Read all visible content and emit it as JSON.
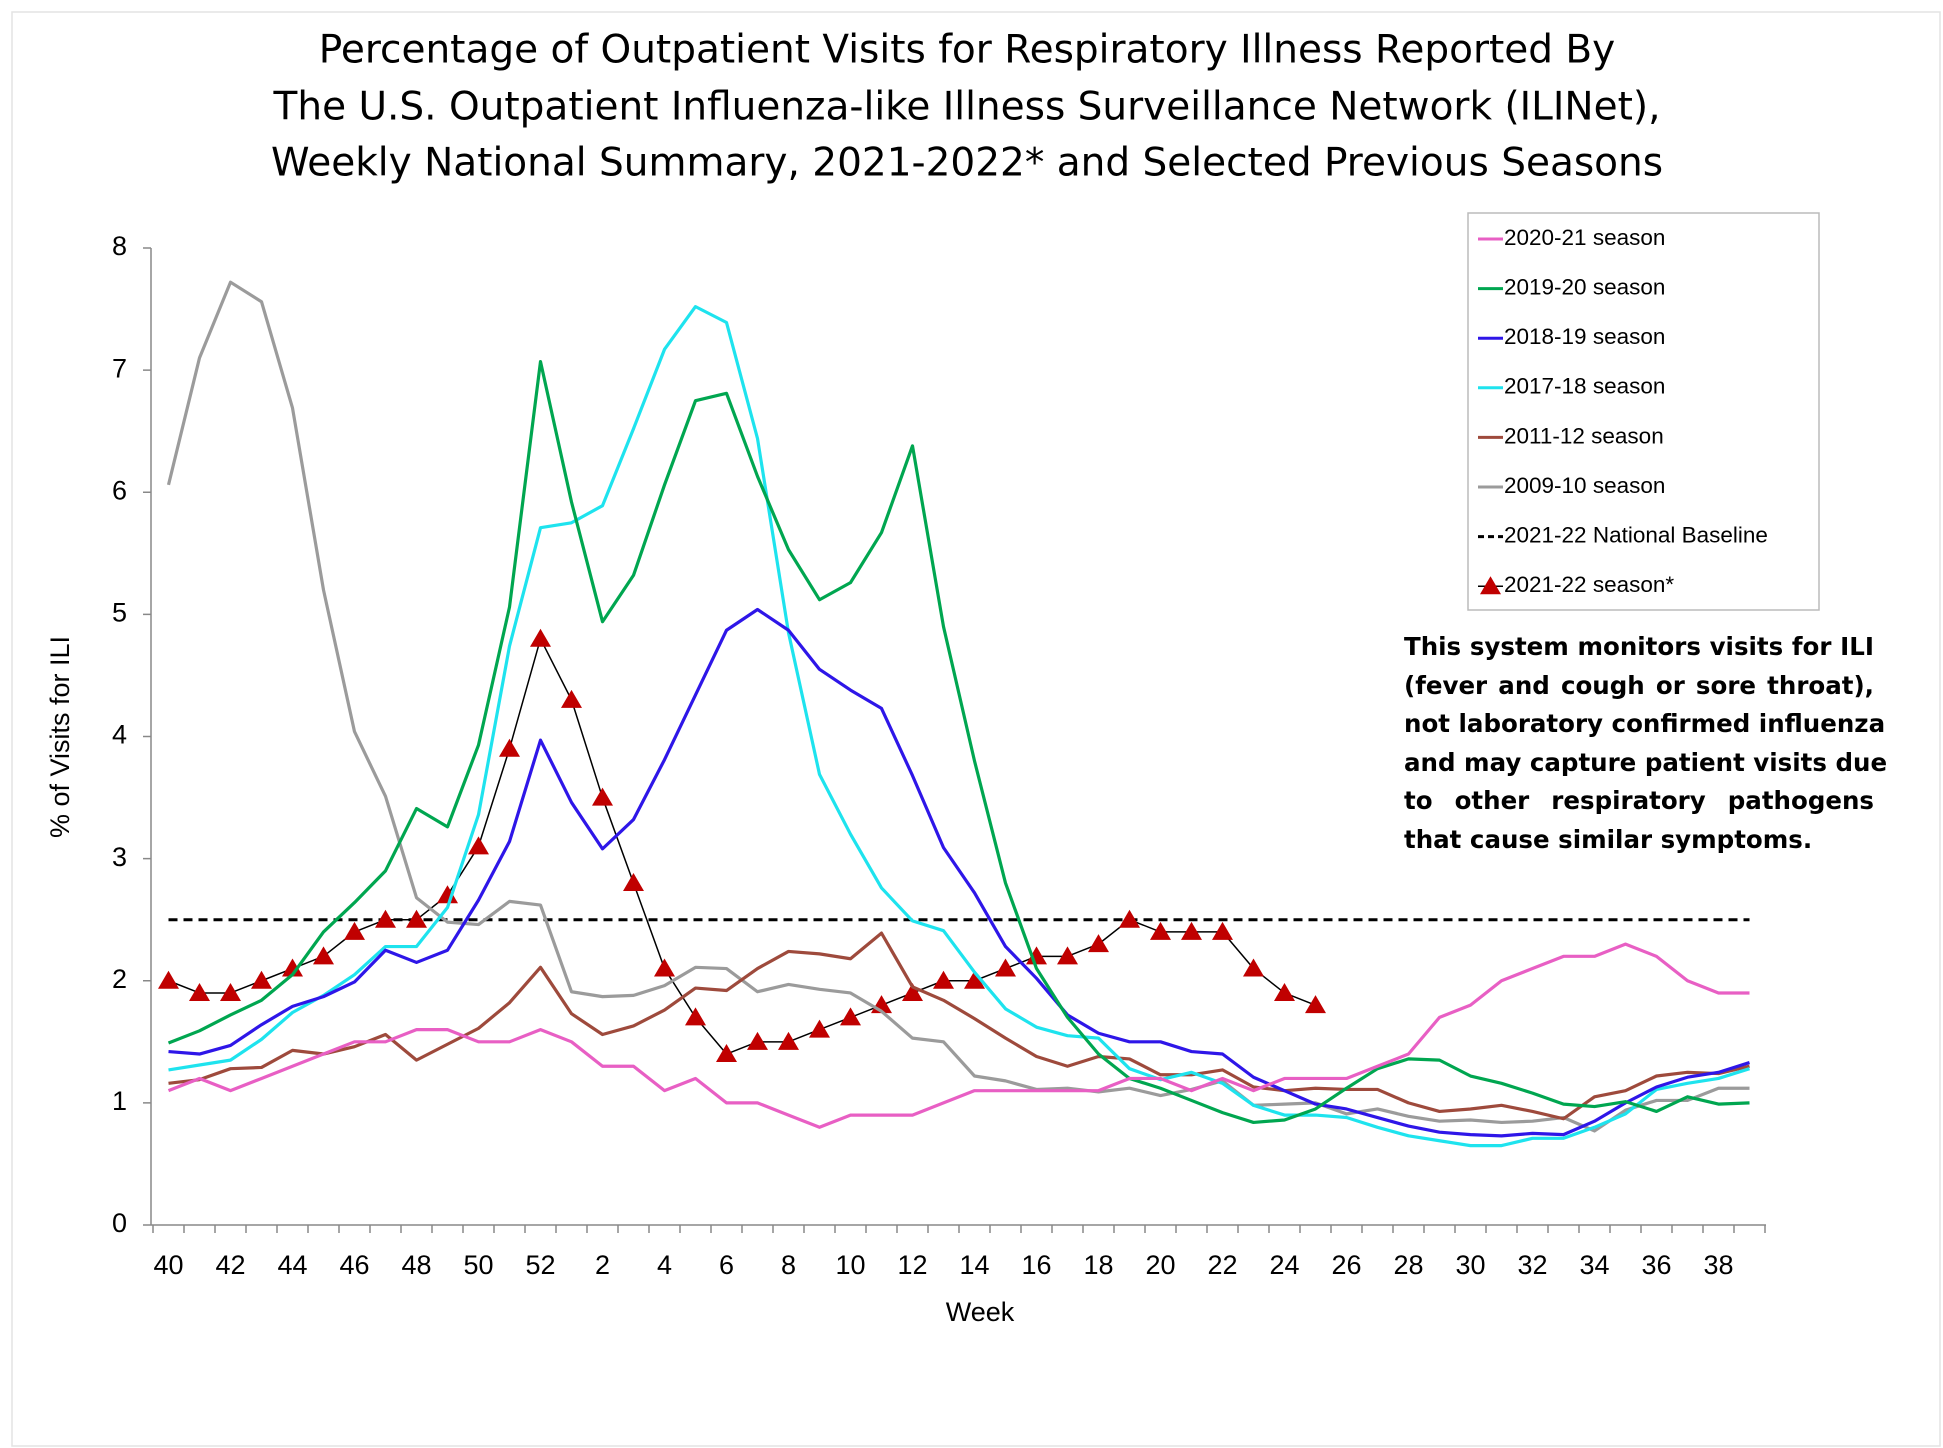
{
  "chart_data": {
    "type": "line",
    "title": [
      "Percentage of Outpatient Visits for Respiratory Illness Reported By",
      "The U.S. Outpatient Influenza-like Illness Surveillance Network (ILINet),",
      "Weekly National Summary, 2021-2022* and Selected Previous Seasons"
    ],
    "x_label": "Week",
    "y_label": "% of Visits for ILI",
    "categories": [
      40,
      null,
      42,
      null,
      44,
      null,
      46,
      null,
      48,
      null,
      50,
      null,
      52,
      null,
      2,
      null,
      4,
      null,
      6,
      null,
      8,
      null,
      10,
      null,
      12,
      null,
      14,
      null,
      16,
      null,
      18,
      null,
      20,
      null,
      22,
      null,
      24,
      null,
      26,
      null,
      28,
      null,
      30,
      null,
      32,
      null,
      34,
      null,
      36,
      null,
      38,
      null
    ],
    "ylim": [
      0,
      8
    ],
    "yticks": [
      0,
      1,
      2,
      3,
      4,
      5,
      6,
      7,
      8
    ],
    "series": [
      {
        "name": "2020-21 season",
        "color": "#e85fc4",
        "values": [
          1.1,
          1.2,
          1.1,
          1.2,
          1.3,
          1.4,
          1.5,
          1.5,
          1.6,
          1.6,
          1.5,
          1.5,
          1.6,
          1.5,
          1.3,
          1.3,
          1.1,
          1.2,
          1.0,
          1.0,
          0.9,
          0.8,
          0.9,
          0.9,
          0.9,
          1.0,
          1.1,
          1.1,
          1.1,
          1.1,
          1.1,
          1.2,
          1.2,
          1.1,
          1.2,
          1.1,
          1.2,
          1.2,
          1.2,
          1.3,
          1.4,
          1.7,
          1.8,
          2.0,
          2.1,
          2.2,
          2.2,
          2.3,
          2.2,
          2.0,
          1.9,
          1.9
        ]
      },
      {
        "name": "2019-20 season",
        "color": "#00a650",
        "values": [
          1.49,
          1.59,
          1.72,
          1.84,
          2.05,
          2.4,
          2.64,
          2.9,
          3.41,
          3.26,
          3.93,
          5.06,
          7.07,
          5.92,
          4.94,
          5.32,
          6.06,
          6.75,
          6.81,
          6.13,
          5.53,
          5.12,
          5.26,
          5.67,
          6.38,
          4.9,
          3.8,
          2.8,
          2.1,
          1.7,
          1.4,
          1.2,
          1.12,
          1.02,
          0.92,
          0.84,
          0.86,
          0.95,
          1.12,
          1.28,
          1.36,
          1.35,
          1.22,
          1.16,
          1.08,
          0.99,
          0.97,
          1.01,
          0.93,
          1.05,
          0.99,
          1.0
        ]
      },
      {
        "name": "2018-19 season",
        "color": "#2e16e8",
        "values": [
          1.42,
          1.4,
          1.47,
          1.64,
          1.79,
          1.87,
          1.99,
          2.25,
          2.15,
          2.25,
          2.66,
          3.14,
          3.97,
          3.46,
          3.08,
          3.32,
          3.81,
          4.34,
          4.87,
          5.04,
          4.87,
          4.55,
          4.38,
          4.23,
          3.68,
          3.09,
          2.72,
          2.28,
          2.02,
          1.72,
          1.57,
          1.5,
          1.5,
          1.42,
          1.4,
          1.21,
          1.1,
          0.99,
          0.95,
          0.88,
          0.81,
          0.76,
          0.74,
          0.73,
          0.75,
          0.74,
          0.85,
          1.0,
          1.13,
          1.21,
          1.25,
          1.33
        ]
      },
      {
        "name": "2017-18 season",
        "color": "#1ee3ee",
        "values": [
          1.27,
          1.31,
          1.35,
          1.52,
          1.74,
          1.88,
          2.05,
          2.28,
          2.28,
          2.6,
          3.36,
          4.74,
          5.71,
          5.75,
          5.89,
          6.52,
          7.17,
          7.52,
          7.39,
          6.44,
          4.85,
          3.69,
          3.2,
          2.76,
          2.49,
          2.41,
          2.07,
          1.77,
          1.62,
          1.55,
          1.53,
          1.28,
          1.19,
          1.25,
          1.16,
          0.98,
          0.9,
          0.9,
          0.88,
          0.8,
          0.73,
          0.69,
          0.65,
          0.65,
          0.71,
          0.71,
          0.8,
          0.91,
          1.11,
          1.16,
          1.2,
          1.28
        ]
      },
      {
        "name": "2011-12 season",
        "color": "#9e4a3c",
        "values": [
          1.16,
          1.19,
          1.28,
          1.29,
          1.43,
          1.4,
          1.46,
          1.56,
          1.35,
          1.48,
          1.61,
          1.82,
          2.11,
          1.73,
          1.56,
          1.63,
          1.76,
          1.94,
          1.92,
          2.1,
          2.24,
          2.22,
          2.18,
          2.39,
          1.95,
          1.84,
          1.69,
          1.53,
          1.38,
          1.3,
          1.38,
          1.36,
          1.23,
          1.23,
          1.27,
          1.13,
          1.1,
          1.12,
          1.11,
          1.11,
          1.0,
          0.93,
          0.95,
          0.98,
          0.93,
          0.87,
          1.05,
          1.1,
          1.22,
          1.25,
          1.24,
          1.3
        ]
      },
      {
        "name": "2009-10 season",
        "color": "#9b9b9b",
        "values": [
          6.06,
          7.1,
          7.72,
          7.56,
          6.69,
          5.2,
          4.04,
          3.51,
          2.68,
          2.48,
          2.46,
          2.65,
          2.62,
          1.91,
          1.87,
          1.88,
          1.96,
          2.11,
          2.1,
          1.91,
          1.97,
          1.93,
          1.9,
          1.75,
          1.53,
          1.5,
          1.22,
          1.18,
          1.11,
          1.12,
          1.09,
          1.12,
          1.06,
          1.11,
          1.18,
          0.98,
          0.99,
          1.0,
          0.91,
          0.95,
          0.89,
          0.85,
          0.86,
          0.84,
          0.85,
          0.88,
          0.77,
          0.94,
          1.02,
          1.02,
          1.12,
          1.12
        ]
      },
      {
        "name": "2021-22 season*",
        "color": "#c00000",
        "line_color": "#000000",
        "marker": "triangle",
        "values": [
          2.0,
          1.9,
          1.9,
          2.0,
          2.1,
          2.2,
          2.4,
          2.5,
          2.5,
          2.7,
          3.1,
          3.9,
          4.8,
          4.3,
          3.5,
          2.8,
          2.1,
          1.7,
          1.4,
          1.5,
          1.5,
          1.6,
          1.7,
          1.8,
          1.9,
          2.0,
          2.0,
          2.1,
          2.2,
          2.2,
          2.3,
          2.5,
          2.4,
          2.4,
          2.4,
          2.1,
          1.9,
          1.8,
          null,
          null,
          null,
          null,
          null,
          null,
          null,
          null,
          null,
          null,
          null,
          null,
          null,
          null
        ]
      }
    ],
    "baseline": {
      "name": "2021-22 National Baseline",
      "value": 2.5,
      "color": "#000000"
    },
    "legend_order": [
      0,
      1,
      2,
      3,
      4,
      5,
      "baseline",
      6
    ],
    "legend": "upper right",
    "annotation": [
      "This system monitors visits for ILI",
      "(fever and cough or sore throat),",
      "not laboratory confirmed influenza",
      "and may capture patient visits due",
      "to other respiratory pathogens",
      "that cause similar symptoms."
    ]
  }
}
